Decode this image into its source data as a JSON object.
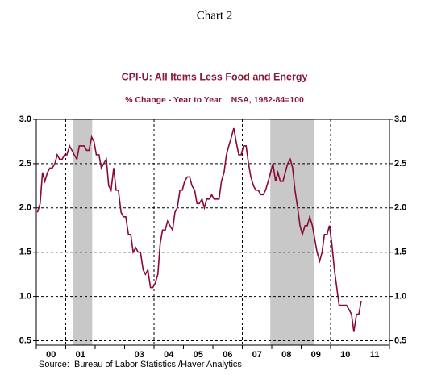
{
  "chart_data": {
    "type": "line",
    "header": "Chart 2",
    "title": "CPI-U: All Items Less Food and Energy",
    "subtitle": "% Change - Year to Year    NSA, 1982-84=100",
    "source": "Source:  Bureau of Labor Statistics /Haver Analytics",
    "xlim": [
      2000,
      2012
    ],
    "xticks": [
      2000,
      2001,
      2002,
      2003,
      2004,
      2005,
      2006,
      2007,
      2008,
      2009,
      2010,
      2011,
      2012
    ],
    "xlabels": [
      {
        "value": 2000.5,
        "label": "00"
      },
      {
        "value": 2001.5,
        "label": "01"
      },
      {
        "value": 2003.5,
        "label": "03"
      },
      {
        "value": 2004.5,
        "label": "04"
      },
      {
        "value": 2005.5,
        "label": "05"
      },
      {
        "value": 2006.5,
        "label": "06"
      },
      {
        "value": 2007.5,
        "label": "07"
      },
      {
        "value": 2008.5,
        "label": "08"
      },
      {
        "value": 2009.5,
        "label": "09"
      },
      {
        "value": 2010.5,
        "label": "10"
      },
      {
        "value": 2011.5,
        "label": "11"
      }
    ],
    "xgrid": [
      2001,
      2004,
      2007,
      2010
    ],
    "recessions": [
      [
        2001.25,
        2001.9
      ],
      [
        2007.95,
        2009.45
      ]
    ],
    "recession_color": "#c8c8c8",
    "ylim": [
      0.45,
      3.0
    ],
    "yticks": [
      {
        "value": 0.5,
        "label": "0.5"
      },
      {
        "value": 1.0,
        "label": "1.0"
      },
      {
        "value": 1.5,
        "label": "1.5"
      },
      {
        "value": 2.0,
        "label": "2.0"
      },
      {
        "value": 2.5,
        "label": "2.5"
      },
      {
        "value": 3.0,
        "label": "3.0"
      }
    ],
    "grid": true,
    "series": [
      {
        "color": "#8b0a32",
        "x": [
          2000.04,
          2000.13,
          2000.21,
          2000.29,
          2000.38,
          2000.46,
          2000.54,
          2000.63,
          2000.71,
          2000.79,
          2000.88,
          2000.96,
          2001.04,
          2001.13,
          2001.21,
          2001.29,
          2001.38,
          2001.46,
          2001.54,
          2001.63,
          2001.71,
          2001.79,
          2001.88,
          2001.96,
          2002.04,
          2002.13,
          2002.21,
          2002.29,
          2002.38,
          2002.46,
          2002.54,
          2002.63,
          2002.71,
          2002.79,
          2002.88,
          2002.96,
          2003.04,
          2003.13,
          2003.21,
          2003.29,
          2003.38,
          2003.46,
          2003.54,
          2003.63,
          2003.71,
          2003.79,
          2003.88,
          2003.96,
          2004.04,
          2004.13,
          2004.21,
          2004.29,
          2004.38,
          2004.46,
          2004.54,
          2004.63,
          2004.71,
          2004.79,
          2004.88,
          2004.96,
          2005.04,
          2005.13,
          2005.21,
          2005.29,
          2005.38,
          2005.46,
          2005.54,
          2005.63,
          2005.71,
          2005.79,
          2005.88,
          2005.96,
          2006.04,
          2006.13,
          2006.21,
          2006.29,
          2006.38,
          2006.46,
          2006.54,
          2006.63,
          2006.71,
          2006.79,
          2006.88,
          2006.96,
          2007.04,
          2007.13,
          2007.21,
          2007.29,
          2007.38,
          2007.46,
          2007.54,
          2007.63,
          2007.71,
          2007.79,
          2007.88,
          2007.96,
          2008.04,
          2008.13,
          2008.21,
          2008.29,
          2008.38,
          2008.46,
          2008.54,
          2008.63,
          2008.71,
          2008.79,
          2008.88,
          2008.96,
          2009.04,
          2009.13,
          2009.21,
          2009.29,
          2009.38,
          2009.46,
          2009.54,
          2009.63,
          2009.71,
          2009.79,
          2009.88,
          2009.96,
          2010.04,
          2010.13,
          2010.21,
          2010.29,
          2010.38,
          2010.46,
          2010.54,
          2010.63,
          2010.71,
          2010.79,
          2010.88,
          2010.96,
          2011.04
        ],
        "values": [
          1.95,
          2.05,
          2.4,
          2.3,
          2.4,
          2.45,
          2.45,
          2.5,
          2.6,
          2.55,
          2.55,
          2.6,
          2.6,
          2.7,
          2.65,
          2.6,
          2.55,
          2.7,
          2.7,
          2.7,
          2.65,
          2.65,
          2.8,
          2.75,
          2.6,
          2.6,
          2.45,
          2.5,
          2.55,
          2.25,
          2.2,
          2.45,
          2.2,
          2.2,
          1.95,
          1.9,
          1.9,
          1.7,
          1.7,
          1.5,
          1.55,
          1.5,
          1.5,
          1.3,
          1.25,
          1.3,
          1.1,
          1.1,
          1.15,
          1.25,
          1.6,
          1.75,
          1.75,
          1.85,
          1.8,
          1.75,
          1.95,
          2.0,
          2.2,
          2.2,
          2.3,
          2.35,
          2.35,
          2.25,
          2.2,
          2.05,
          2.05,
          2.1,
          2.0,
          2.1,
          2.1,
          2.15,
          2.1,
          2.1,
          2.1,
          2.3,
          2.4,
          2.6,
          2.7,
          2.8,
          2.9,
          2.75,
          2.6,
          2.6,
          2.7,
          2.7,
          2.5,
          2.35,
          2.25,
          2.2,
          2.2,
          2.15,
          2.15,
          2.2,
          2.3,
          2.4,
          2.5,
          2.3,
          2.4,
          2.3,
          2.3,
          2.4,
          2.5,
          2.55,
          2.45,
          2.2,
          2.0,
          1.8,
          1.7,
          1.8,
          1.8,
          1.9,
          1.8,
          1.65,
          1.5,
          1.4,
          1.5,
          1.7,
          1.7,
          1.8,
          1.6,
          1.3,
          1.1,
          0.9,
          0.9,
          0.9,
          0.9,
          0.85,
          0.8,
          0.6,
          0.8,
          0.8,
          0.95
        ]
      }
    ]
  }
}
